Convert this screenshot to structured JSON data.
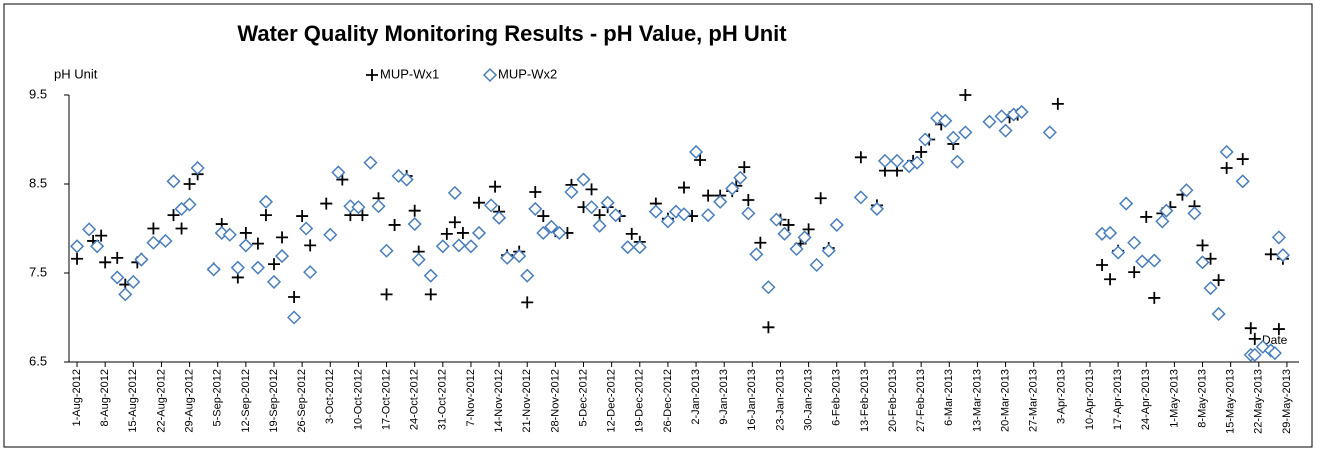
{
  "chart_data": {
    "type": "scatter",
    "title": "Water Quality Monitoring Results - pH Value, pH Unit",
    "y_label": "pH Unit",
    "x_label": "Date",
    "xlim": [
      "2012-07-30",
      "2013-06-01"
    ],
    "ylim": [
      6.5,
      9.5
    ],
    "yticks": [
      6.5,
      7.5,
      8.5,
      9.5
    ],
    "xticks": [
      {
        "value": "2012-08-01",
        "label": "1-Aug-2012"
      },
      {
        "value": "2012-08-08",
        "label": "8-Aug-2012"
      },
      {
        "value": "2012-08-15",
        "label": "15-Aug-2012"
      },
      {
        "value": "2012-08-22",
        "label": "22-Aug-2012"
      },
      {
        "value": "2012-08-29",
        "label": "29-Aug-2012"
      },
      {
        "value": "2012-09-05",
        "label": "5-Sep-2012"
      },
      {
        "value": "2012-09-12",
        "label": "12-Sep-2012"
      },
      {
        "value": "2012-09-19",
        "label": "19-Sep-2012"
      },
      {
        "value": "2012-09-26",
        "label": "26-Sep-2012"
      },
      {
        "value": "2012-10-03",
        "label": "3-Oct-2012"
      },
      {
        "value": "2012-10-10",
        "label": "10-Oct-2012"
      },
      {
        "value": "2012-10-17",
        "label": "17-Oct-2012"
      },
      {
        "value": "2012-10-24",
        "label": "24-Oct-2012"
      },
      {
        "value": "2012-10-31",
        "label": "31-Oct-2012"
      },
      {
        "value": "2012-11-07",
        "label": "7-Nov-2012"
      },
      {
        "value": "2012-11-14",
        "label": "14-Nov-2012"
      },
      {
        "value": "2012-11-21",
        "label": "21-Nov-2012"
      },
      {
        "value": "2012-11-28",
        "label": "28-Nov-2012"
      },
      {
        "value": "2012-12-05",
        "label": "5-Dec-2012"
      },
      {
        "value": "2012-12-12",
        "label": "12-Dec-2012"
      },
      {
        "value": "2012-12-19",
        "label": "19-Dec-2012"
      },
      {
        "value": "2012-12-26",
        "label": "26-Dec-2012"
      },
      {
        "value": "2013-01-02",
        "label": "2-Jan-2013"
      },
      {
        "value": "2013-01-09",
        "label": "9-Jan-2013"
      },
      {
        "value": "2013-01-16",
        "label": "16-Jan-2013"
      },
      {
        "value": "2013-01-23",
        "label": "23-Jan-2013"
      },
      {
        "value": "2013-01-30",
        "label": "30-Jan-2013"
      },
      {
        "value": "2013-02-06",
        "label": "6-Feb-2013"
      },
      {
        "value": "2013-02-13",
        "label": "13-Feb-2013"
      },
      {
        "value": "2013-02-20",
        "label": "20-Feb-2013"
      },
      {
        "value": "2013-02-27",
        "label": "27-Feb-2013"
      },
      {
        "value": "2013-03-06",
        "label": "6-Mar-2013"
      },
      {
        "value": "2013-03-13",
        "label": "13-Mar-2013"
      },
      {
        "value": "2013-03-20",
        "label": "20-Mar-2013"
      },
      {
        "value": "2013-03-27",
        "label": "27-Mar-2013"
      },
      {
        "value": "2013-04-03",
        "label": "3-Apr-2013"
      },
      {
        "value": "2013-04-10",
        "label": "10-Apr-2013"
      },
      {
        "value": "2013-04-17",
        "label": "17-Apr-2013"
      },
      {
        "value": "2013-04-24",
        "label": "24-Apr-2013"
      },
      {
        "value": "2013-05-01",
        "label": "1-May-2013"
      },
      {
        "value": "2013-05-08",
        "label": "8-May-2013"
      },
      {
        "value": "2013-05-15",
        "label": "15-May-2013"
      },
      {
        "value": "2013-05-22",
        "label": "22-May-2013"
      },
      {
        "value": "2013-05-29",
        "label": "29-May-2013"
      }
    ],
    "series": [
      {
        "name": "MUP-Wx1",
        "color": "#000000",
        "marker": "plus",
        "x": [
          "2012-08-01",
          "2012-08-05",
          "2012-08-07",
          "2012-08-08",
          "2012-08-11",
          "2012-08-13",
          "2012-08-16",
          "2012-08-17",
          "2012-08-20",
          "2012-08-25",
          "2012-08-27",
          "2012-08-29",
          "2012-08-31",
          "2012-09-04",
          "2012-09-06",
          "2012-09-10",
          "2012-09-12",
          "2012-09-15",
          "2012-09-17",
          "2012-09-19",
          "2012-09-21",
          "2012-09-24",
          "2012-09-26",
          "2012-09-28",
          "2012-10-02",
          "2012-10-06",
          "2012-10-08",
          "2012-10-11",
          "2012-10-15",
          "2012-10-17",
          "2012-10-19",
          "2012-10-22",
          "2012-10-24",
          "2012-10-25",
          "2012-10-28",
          "2012-11-01",
          "2012-11-03",
          "2012-11-05",
          "2012-11-09",
          "2012-11-13",
          "2012-11-14",
          "2012-11-16",
          "2012-11-19",
          "2012-11-21",
          "2012-11-23",
          "2012-11-25",
          "2012-11-28",
          "2012-12-01",
          "2012-12-02",
          "2012-12-05",
          "2012-12-07",
          "2012-12-09",
          "2012-12-11",
          "2012-12-14",
          "2012-12-17",
          "2012-12-19",
          "2012-12-23",
          "2012-12-26",
          "2012-12-30",
          "2013-01-01",
          "2013-01-03",
          "2013-01-05",
          "2013-01-08",
          "2013-01-11",
          "2013-01-12",
          "2013-01-14",
          "2013-01-15",
          "2013-01-18",
          "2013-01-20",
          "2013-01-23",
          "2013-01-25",
          "2013-01-28",
          "2013-01-30",
          "2013-02-02",
          "2013-02-04",
          "2013-02-06",
          "2013-02-12",
          "2013-02-16",
          "2013-02-18",
          "2013-02-21",
          "2013-02-25",
          "2013-02-27",
          "2013-03-01",
          "2013-03-04",
          "2013-03-07",
          "2013-03-10",
          "2013-03-21",
          "2013-03-23",
          "2013-03-24",
          "2013-04-02",
          "2013-04-13",
          "2013-04-15",
          "2013-04-17",
          "2013-04-19",
          "2013-04-21",
          "2013-04-24",
          "2013-04-26",
          "2013-04-28",
          "2013-04-30",
          "2013-05-03",
          "2013-05-06",
          "2013-05-08",
          "2013-05-10",
          "2013-05-12",
          "2013-05-14",
          "2013-05-18",
          "2013-05-20",
          "2013-05-21",
          "2013-05-23",
          "2013-05-25",
          "2013-05-26",
          "2013-05-27",
          "2013-05-28"
        ],
        "values": [
          7.66,
          7.86,
          7.92,
          7.62,
          7.67,
          7.37,
          7.62,
          7.66,
          8.0,
          8.15,
          8.0,
          8.5,
          8.61,
          7.55,
          8.05,
          7.45,
          7.95,
          7.83,
          8.15,
          7.6,
          7.9,
          7.23,
          8.14,
          7.81,
          8.28,
          8.55,
          8.15,
          8.15,
          8.34,
          7.26,
          8.04,
          8.59,
          8.2,
          7.74,
          7.26,
          7.94,
          8.07,
          7.95,
          8.29,
          8.47,
          8.19,
          7.7,
          7.74,
          7.17,
          8.41,
          8.14,
          7.97,
          7.95,
          8.49,
          8.24,
          8.44,
          8.15,
          8.24,
          8.14,
          7.94,
          7.85,
          8.28,
          8.11,
          8.46,
          8.14,
          8.77,
          8.37,
          8.37,
          8.42,
          8.48,
          8.69,
          8.32,
          7.84,
          6.89,
          8.1,
          8.04,
          7.83,
          7.99,
          8.34,
          7.78,
          8.04,
          8.8,
          8.26,
          8.65,
          8.65,
          8.76,
          8.86,
          9.0,
          9.17,
          8.95,
          9.5,
          9.25,
          9.28,
          9.31,
          9.4,
          7.59,
          7.43,
          7.75,
          8.28,
          7.51,
          8.13,
          7.22,
          8.17,
          8.24,
          8.38,
          8.25,
          7.81,
          7.66,
          7.42,
          8.68,
          8.78,
          6.88,
          6.76,
          6.67,
          7.71,
          6.6,
          6.87,
          7.66
        ]
      },
      {
        "name": "MUP-Wx2",
        "color": "#4a7ebb",
        "marker": "diamond",
        "x": [
          "2012-08-01",
          "2012-08-04",
          "2012-08-06",
          "2012-08-11",
          "2012-08-13",
          "2012-08-15",
          "2012-08-17",
          "2012-08-20",
          "2012-08-23",
          "2012-08-25",
          "2012-08-27",
          "2012-08-29",
          "2012-08-31",
          "2012-09-04",
          "2012-09-06",
          "2012-09-08",
          "2012-09-10",
          "2012-09-12",
          "2012-09-15",
          "2012-09-17",
          "2012-09-19",
          "2012-09-21",
          "2012-09-24",
          "2012-09-27",
          "2012-09-28",
          "2012-10-03",
          "2012-10-05",
          "2012-10-08",
          "2012-10-10",
          "2012-10-13",
          "2012-10-15",
          "2012-10-17",
          "2012-10-20",
          "2012-10-22",
          "2012-10-24",
          "2012-10-25",
          "2012-10-28",
          "2012-10-31",
          "2012-11-03",
          "2012-11-04",
          "2012-11-07",
          "2012-11-09",
          "2012-11-12",
          "2012-11-14",
          "2012-11-16",
          "2012-11-19",
          "2012-11-21",
          "2012-11-23",
          "2012-11-25",
          "2012-11-27",
          "2012-11-29",
          "2012-12-02",
          "2012-12-05",
          "2012-12-07",
          "2012-12-09",
          "2012-12-11",
          "2012-12-13",
          "2012-12-16",
          "2012-12-19",
          "2012-12-23",
          "2012-12-26",
          "2012-12-28",
          "2012-12-30",
          "2013-01-02",
          "2013-01-05",
          "2013-01-08",
          "2013-01-11",
          "2013-01-13",
          "2013-01-15",
          "2013-01-17",
          "2013-01-20",
          "2013-01-22",
          "2013-01-24",
          "2013-01-27",
          "2013-01-29",
          "2013-02-01",
          "2013-02-04",
          "2013-02-06",
          "2013-02-12",
          "2013-02-16",
          "2013-02-18",
          "2013-02-21",
          "2013-02-24",
          "2013-02-26",
          "2013-02-28",
          "2013-03-03",
          "2013-03-05",
          "2013-03-07",
          "2013-03-08",
          "2013-03-10",
          "2013-03-16",
          "2013-03-19",
          "2013-03-20",
          "2013-03-22",
          "2013-03-24",
          "2013-03-31",
          "2013-04-13",
          "2013-04-15",
          "2013-04-17",
          "2013-04-19",
          "2013-04-21",
          "2013-04-23",
          "2013-04-26",
          "2013-04-28",
          "2013-04-29",
          "2013-05-04",
          "2013-05-06",
          "2013-05-08",
          "2013-05-10",
          "2013-05-12",
          "2013-05-14",
          "2013-05-18",
          "2013-05-20",
          "2013-05-21",
          "2013-05-23",
          "2013-05-25",
          "2013-05-26",
          "2013-05-27",
          "2013-05-28"
        ],
        "values": [
          7.8,
          7.99,
          7.8,
          7.45,
          7.26,
          7.4,
          7.65,
          7.84,
          7.86,
          8.53,
          8.22,
          8.27,
          8.68,
          7.54,
          7.95,
          7.93,
          7.56,
          7.81,
          7.56,
          8.3,
          7.4,
          7.69,
          7.0,
          8.0,
          7.51,
          7.93,
          8.63,
          8.25,
          8.24,
          8.74,
          8.25,
          7.75,
          8.59,
          8.55,
          8.05,
          7.65,
          7.47,
          7.8,
          8.4,
          7.81,
          7.8,
          7.95,
          8.26,
          8.12,
          7.67,
          7.69,
          7.47,
          8.22,
          7.95,
          8.02,
          7.95,
          8.41,
          8.55,
          8.24,
          8.03,
          8.29,
          8.15,
          7.79,
          7.79,
          8.19,
          8.08,
          8.19,
          8.16,
          8.86,
          8.15,
          8.3,
          8.45,
          8.57,
          8.17,
          7.71,
          7.34,
          8.1,
          7.94,
          7.77,
          7.9,
          7.59,
          7.75,
          8.04,
          8.35,
          8.22,
          8.76,
          8.76,
          8.7,
          8.74,
          9.0,
          9.24,
          9.21,
          9.02,
          8.75,
          9.08,
          9.2,
          9.26,
          9.1,
          9.28,
          9.31,
          9.08,
          7.94,
          7.95,
          7.73,
          8.28,
          7.84,
          7.63,
          7.64,
          8.08,
          8.2,
          8.43,
          8.17,
          7.62,
          7.33,
          7.04,
          8.86,
          8.53,
          6.58,
          6.58,
          6.67,
          6.63,
          6.6,
          7.9,
          7.7
        ]
      }
    ]
  }
}
